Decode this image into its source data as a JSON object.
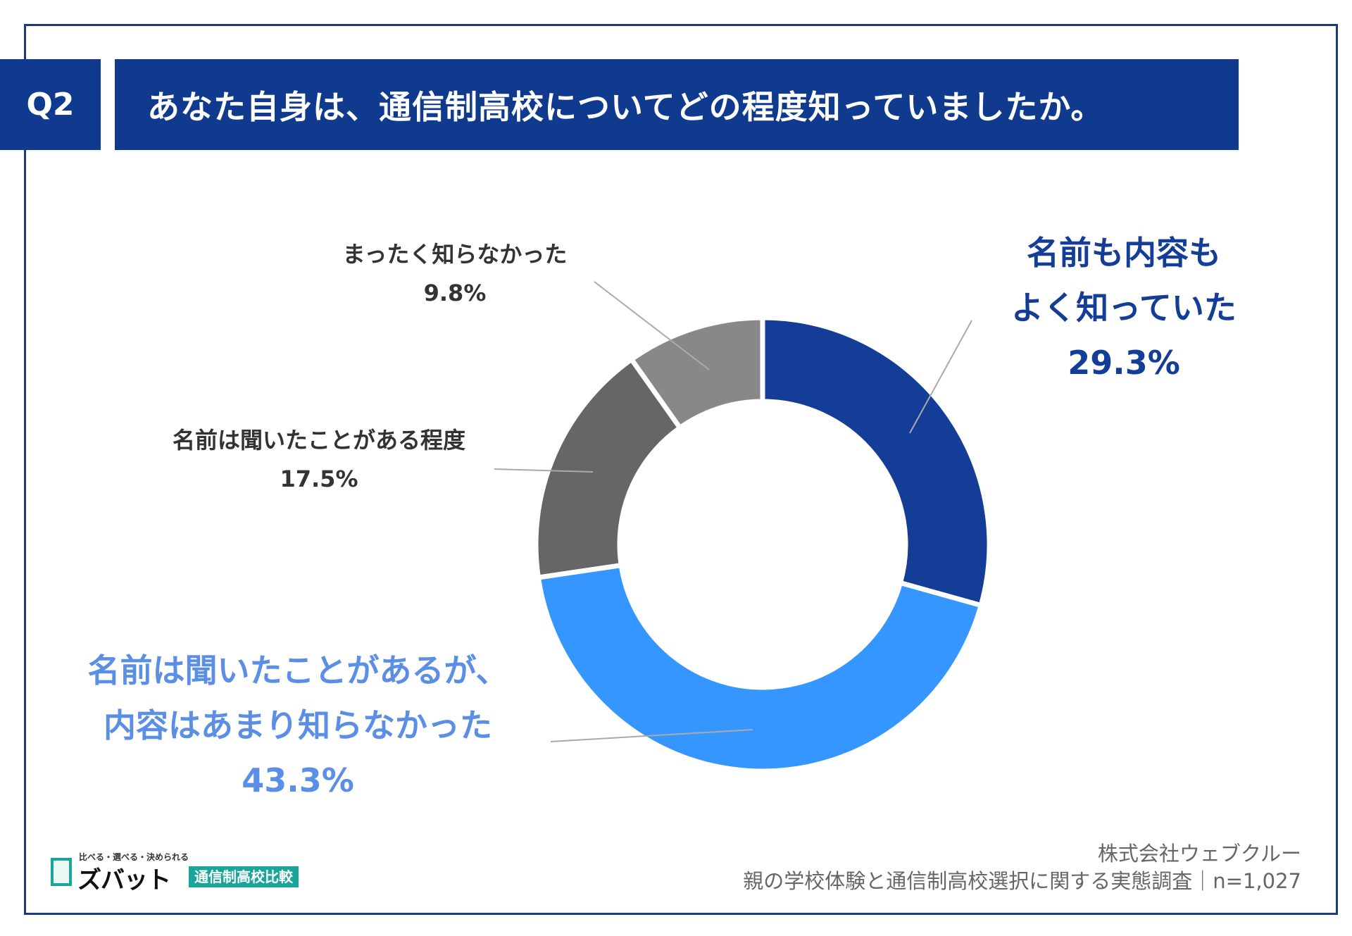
{
  "header": {
    "question_number": "Q2",
    "question_text": "あなた自身は、通信制高校についてどの程度知っていましたか。"
  },
  "chart_data": {
    "type": "pie",
    "variant": "donut",
    "title": "あなた自身は、通信制高校についてどの程度知っていましたか。",
    "slices": [
      {
        "id": "well",
        "label_lines": [
          "名前も内容も",
          "よく知っていた"
        ],
        "value": 29.3,
        "value_label": "29.3%",
        "color": "#133d96",
        "label_color": "#133d96"
      },
      {
        "id": "name_only_content_little",
        "label_lines": [
          "名前は聞いたことがあるが、",
          "内容はあまり知らなかった"
        ],
        "value": 43.3,
        "value_label": "43.3%",
        "color": "#3596ff",
        "label_color": "#5b8fe6"
      },
      {
        "id": "heard_name",
        "label_lines": [
          "名前は聞いたことがある程度"
        ],
        "value": 17.5,
        "value_label": "17.5%",
        "color": "#666666",
        "label_color": "#333333"
      },
      {
        "id": "not_at_all",
        "label_lines": [
          "まったく知らなかった"
        ],
        "value": 9.8,
        "value_label": "9.8%",
        "color": "#888888",
        "label_color": "#333333"
      }
    ]
  },
  "footer": {
    "company": "株式会社ウェブクルー",
    "survey": "親の学校体験と通信制高校選択に関する実態調査｜n=1,027"
  },
  "logo": {
    "tagline": "比べる・選べる・決められる",
    "brand": "ズバット",
    "subtitle": "通信制高校比較"
  }
}
